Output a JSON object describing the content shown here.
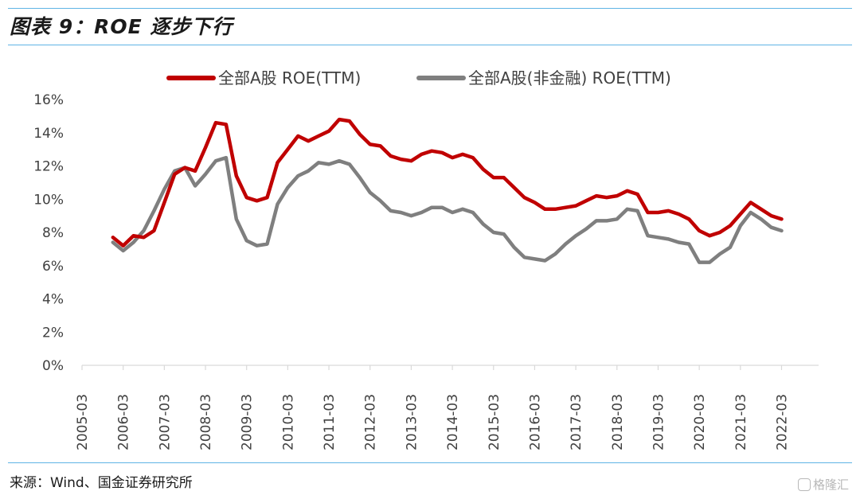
{
  "header": {
    "title": "图表 9：ROE 逐步下行"
  },
  "footer": {
    "source": "来源：Wind、国金证券研究所",
    "watermark": "格隆汇"
  },
  "chart_data": {
    "type": "line",
    "title": "图表 9：ROE 逐步下行",
    "xlabel": "",
    "ylabel": "",
    "ylim": [
      0,
      16
    ],
    "yticks": [
      "0%",
      "2%",
      "4%",
      "6%",
      "8%",
      "10%",
      "12%",
      "14%",
      "16%"
    ],
    "xticks": [
      "2005-03",
      "2006-03",
      "2007-03",
      "2008-03",
      "2009-03",
      "2010-03",
      "2011-03",
      "2012-03",
      "2013-03",
      "2014-03",
      "2015-03",
      "2016-03",
      "2017-03",
      "2018-03",
      "2019-03",
      "2020-03",
      "2021-03",
      "2022-03"
    ],
    "grid": false,
    "legend": "top",
    "x": [
      "2005-12",
      "2006-03",
      "2006-06",
      "2006-09",
      "2006-12",
      "2007-03",
      "2007-06",
      "2007-09",
      "2007-12",
      "2008-03",
      "2008-06",
      "2008-09",
      "2008-12",
      "2009-03",
      "2009-06",
      "2009-09",
      "2009-12",
      "2010-03",
      "2010-06",
      "2010-09",
      "2010-12",
      "2011-03",
      "2011-06",
      "2011-09",
      "2011-12",
      "2012-03",
      "2012-06",
      "2012-09",
      "2012-12",
      "2013-03",
      "2013-06",
      "2013-09",
      "2013-12",
      "2014-03",
      "2014-06",
      "2014-09",
      "2014-12",
      "2015-03",
      "2015-06",
      "2015-09",
      "2015-12",
      "2016-03",
      "2016-06",
      "2016-09",
      "2016-12",
      "2017-03",
      "2017-06",
      "2017-09",
      "2017-12",
      "2018-03",
      "2018-06",
      "2018-09",
      "2018-12",
      "2019-03",
      "2019-06",
      "2019-09",
      "2019-12",
      "2020-03",
      "2020-06",
      "2020-09",
      "2020-12",
      "2021-03",
      "2021-06",
      "2021-09",
      "2021-12",
      "2022-03"
    ],
    "series": [
      {
        "name": "全部A股 ROE(TTM)",
        "color": "#c00000",
        "values": [
          7.7,
          7.2,
          7.8,
          7.7,
          8.1,
          9.8,
          11.5,
          11.9,
          11.7,
          13.1,
          14.6,
          14.5,
          11.4,
          10.1,
          9.9,
          10.1,
          12.2,
          13.0,
          13.8,
          13.5,
          13.8,
          14.1,
          14.8,
          14.7,
          13.9,
          13.3,
          13.2,
          12.6,
          12.4,
          12.3,
          12.7,
          12.9,
          12.8,
          12.5,
          12.7,
          12.5,
          11.8,
          11.3,
          11.3,
          10.7,
          10.1,
          9.8,
          9.4,
          9.4,
          9.5,
          9.6,
          9.9,
          10.2,
          10.1,
          10.2,
          10.5,
          10.3,
          9.2,
          9.2,
          9.3,
          9.1,
          8.8,
          8.1,
          7.8,
          8.0,
          8.4,
          9.1,
          9.8,
          9.4,
          9.0,
          8.8
        ]
      },
      {
        "name": "全部A股(非金融) ROE(TTM)",
        "color": "#7f7f7f",
        "values": [
          7.4,
          6.9,
          7.4,
          8.1,
          9.3,
          10.6,
          11.7,
          11.9,
          10.8,
          11.5,
          12.3,
          12.5,
          8.8,
          7.5,
          7.2,
          7.3,
          9.7,
          10.7,
          11.4,
          11.7,
          12.2,
          12.1,
          12.3,
          12.1,
          11.3,
          10.4,
          9.9,
          9.3,
          9.2,
          9.0,
          9.2,
          9.5,
          9.5,
          9.2,
          9.4,
          9.2,
          8.5,
          8.0,
          7.9,
          7.1,
          6.5,
          6.4,
          6.3,
          6.7,
          7.3,
          7.8,
          8.2,
          8.7,
          8.7,
          8.8,
          9.4,
          9.3,
          7.8,
          7.7,
          7.6,
          7.4,
          7.3,
          6.2,
          6.2,
          6.7,
          7.1,
          8.4,
          9.2,
          8.8,
          8.3,
          8.1
        ]
      }
    ]
  }
}
